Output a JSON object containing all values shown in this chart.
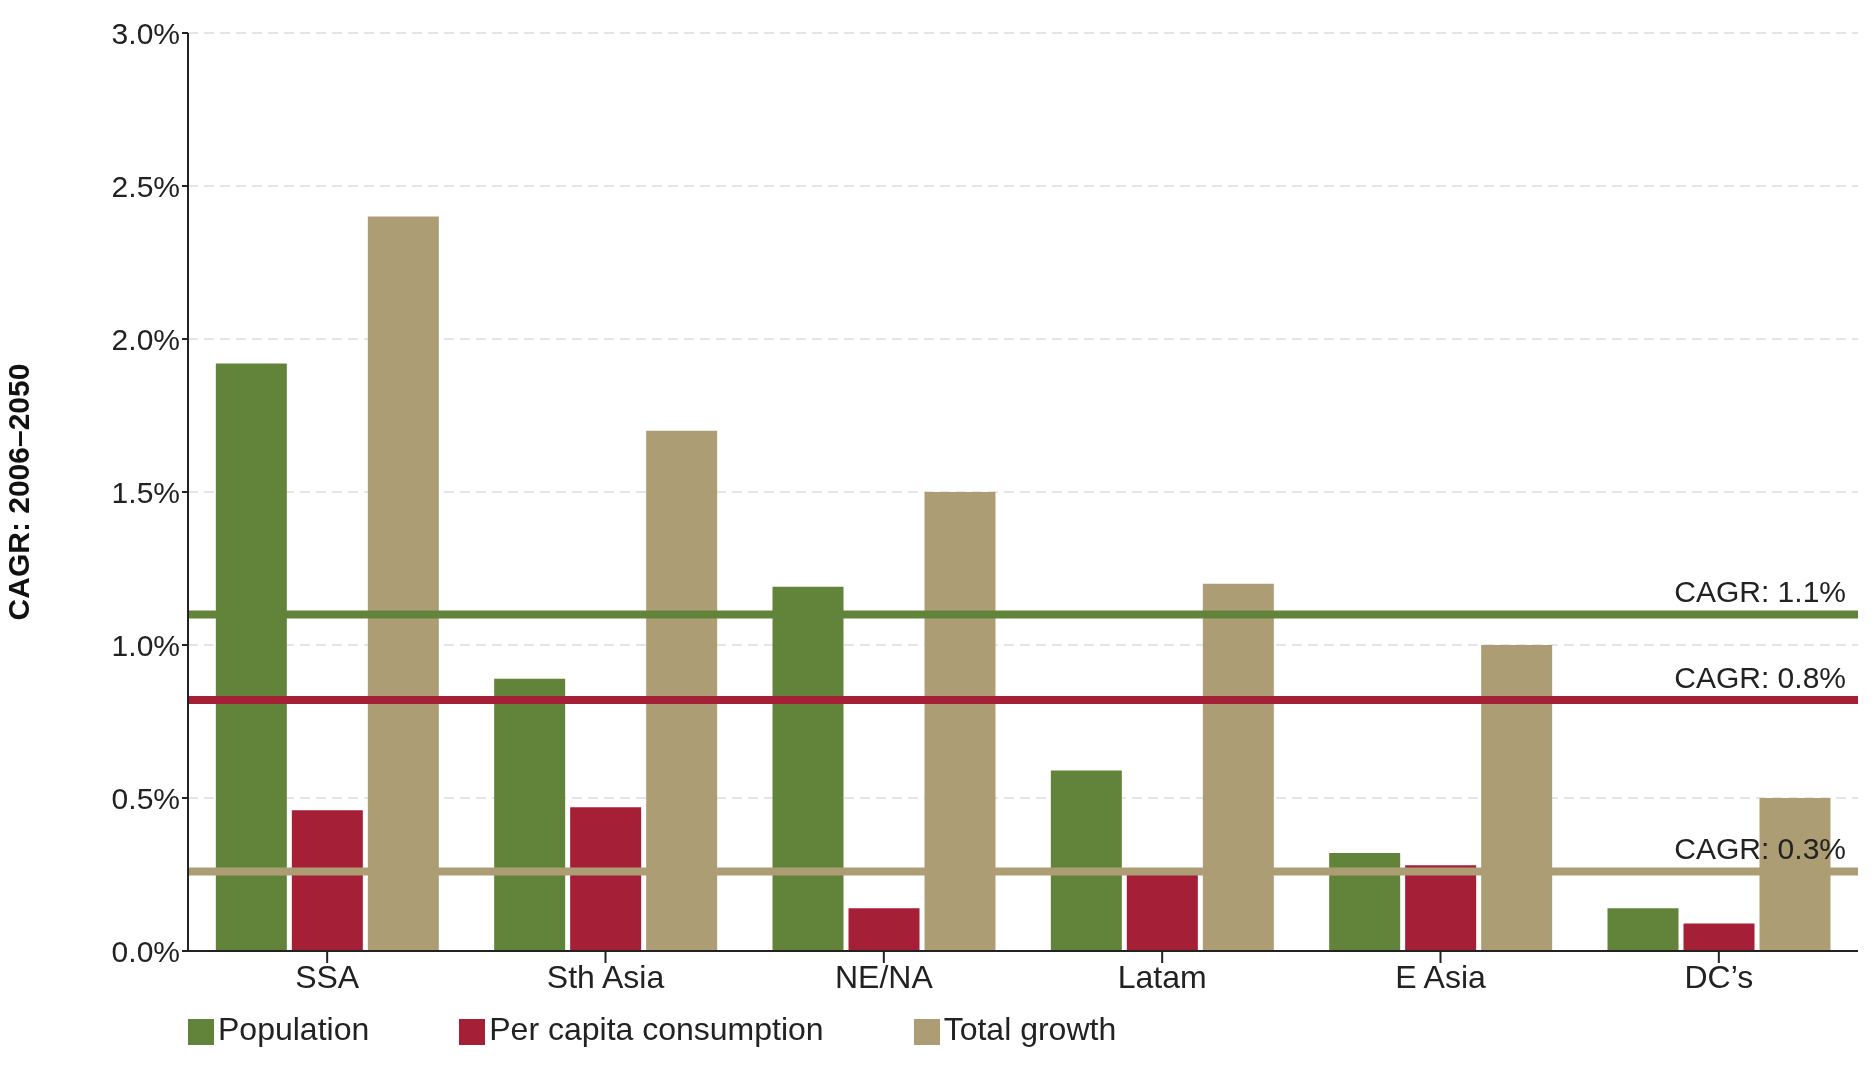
{
  "chart_data": {
    "type": "bar",
    "ylabel": "CAGR: 2006–2050",
    "categories": [
      "SSA",
      "Sth Asia",
      "NE/NA",
      "Latam",
      "E Asia",
      "DC’s"
    ],
    "series": [
      {
        "name": "Population",
        "color": "#62843a",
        "values": [
          1.92,
          0.89,
          1.19,
          0.59,
          0.32,
          0.14
        ]
      },
      {
        "name": "Per capita consumption",
        "color": "#a51f37",
        "values": [
          0.46,
          0.47,
          0.14,
          0.25,
          0.28,
          0.09
        ]
      },
      {
        "name": "Total growth",
        "color": "#ad9d74",
        "values": [
          2.4,
          1.7,
          1.5,
          1.2,
          1.0,
          0.5
        ]
      }
    ],
    "ylim": [
      0,
      3
    ],
    "yticks": [
      {
        "value": 0,
        "label": "0.0%"
      },
      {
        "value": 0.5,
        "label": "0.5%"
      },
      {
        "value": 1,
        "label": "1.0%"
      },
      {
        "value": 1.5,
        "label": "1.5%"
      },
      {
        "value": 2,
        "label": "2.0%"
      },
      {
        "value": 2.5,
        "label": "2.5%"
      },
      {
        "value": 3,
        "label": "3.0%"
      }
    ],
    "ref_lines": [
      {
        "axis": "y",
        "value": 1.1,
        "label": "CAGR: 1.1%",
        "color": "#62843a"
      },
      {
        "axis": "y",
        "value": 0.82,
        "label": "CAGR: 0.8%",
        "color": "#a51f37"
      },
      {
        "axis": "y",
        "value": 0.26,
        "label": "CAGR: 0.3%",
        "color": "#ad9d74"
      }
    ],
    "grid": "y",
    "legend": "bottom left"
  }
}
